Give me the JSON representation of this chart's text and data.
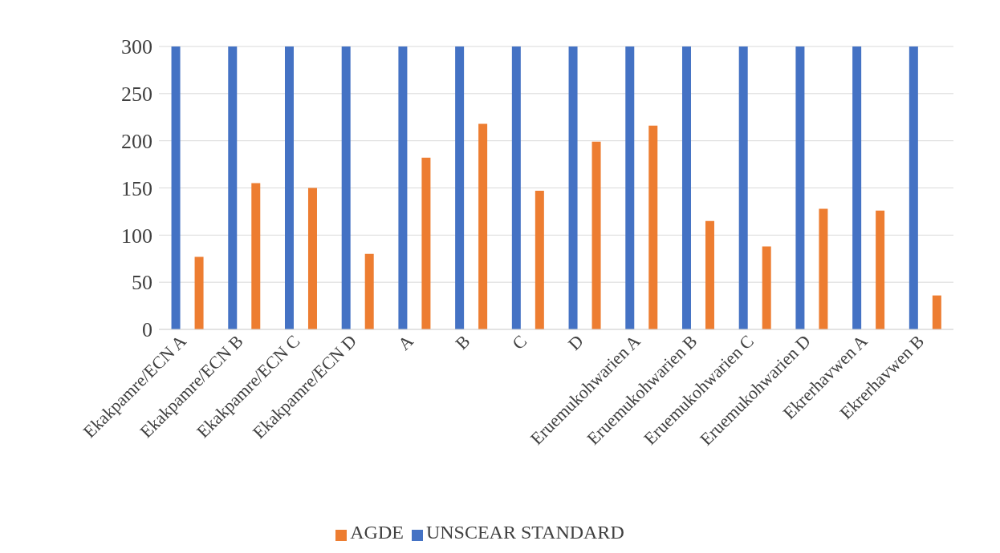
{
  "chart_data": {
    "type": "bar",
    "categories": [
      "Ekakpamre/ECN A",
      "Ekakpamre/ECN B",
      "Ekakpamre/ECN C",
      "Ekakpamre/ECN D",
      "A",
      "B",
      "C",
      "D",
      "Eruemukohwarien A",
      "Eruemukohwarien B",
      "Eruemukohwarien C",
      "Eruemukohwarien D",
      "Ekrerhavwen A",
      "Ekrerhavwen B"
    ],
    "series": [
      {
        "name": "UNSCEAR STANDARD",
        "color": "#4472c4",
        "values": [
          300,
          300,
          300,
          300,
          300,
          300,
          300,
          300,
          300,
          300,
          300,
          300,
          300,
          300
        ]
      },
      {
        "name": "AGDE",
        "color": "#ed7d31",
        "values": [
          77,
          155,
          150,
          80,
          182,
          218,
          147,
          199,
          216,
          115,
          88,
          128,
          126,
          36
        ]
      }
    ],
    "ylim": [
      0,
      300
    ],
    "yticks": [
      0,
      50,
      100,
      150,
      200,
      250,
      300
    ],
    "grid": "y",
    "legend": "bottom"
  }
}
